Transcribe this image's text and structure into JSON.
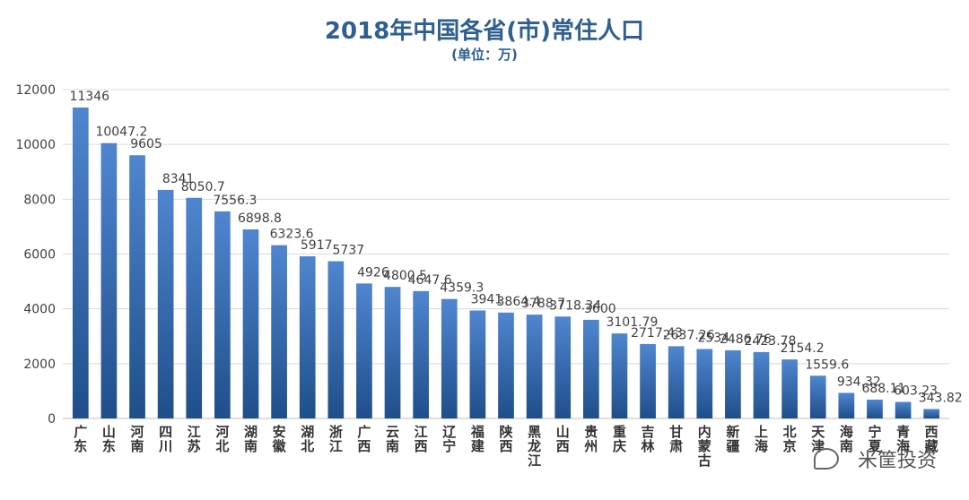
{
  "header": {
    "title": "2018年中国各省(市)常住人口",
    "subtitle": "(单位：万)"
  },
  "watermark": {
    "brand": "米筐投资",
    "icon": "wechat-icon"
  },
  "colors": {
    "bar_top": "#4f86cf",
    "bar_bottom": "#1f4e8a",
    "title": "#2e5f8f",
    "grid": "#d9d9d9",
    "text": "#404040"
  },
  "chart_data": {
    "type": "bar",
    "title": "2018年中国各省(市)常住人口",
    "subtitle": "(单位：万)",
    "categories": [
      "广东",
      "山东",
      "河南",
      "四川",
      "江苏",
      "河北",
      "湖南",
      "安徽",
      "湖北",
      "浙江",
      "广西",
      "云南",
      "江西",
      "辽宁",
      "福建",
      "陕西",
      "黑龙江",
      "山西",
      "贵州",
      "重庆",
      "吉林",
      "甘肃",
      "内蒙古",
      "新疆",
      "上海",
      "北京",
      "天津",
      "海南",
      "宁夏",
      "青海",
      "西藏"
    ],
    "values": [
      11346,
      10047.2,
      9605,
      8341,
      8050.7,
      7556.3,
      6898.8,
      6323.6,
      5917,
      5737,
      4926,
      4800.5,
      4647.6,
      4359.3,
      3941,
      3864.4,
      3788.7,
      3718.34,
      3600,
      3101.79,
      2717.43,
      2637.26,
      2534,
      2486.76,
      2423.78,
      2154.2,
      1559.6,
      934.32,
      688.11,
      603.23,
      343.82
    ],
    "value_labels": [
      "11346",
      "10047.2",
      "9605",
      "8341",
      "8050.7",
      "7556.3",
      "6898.8",
      "6323.6",
      "5917",
      "5737",
      "4926",
      "4800.5",
      "4647.6",
      "4359.3",
      "3941",
      "3864.4",
      "3788.7",
      "3718.34",
      "3600",
      "3101.79",
      "2717.43",
      "2637.26",
      "2534",
      "2486.76",
      "2423.78",
      "2154.2",
      "1559.6",
      "934.32",
      "688.11",
      "603.23",
      "343.82"
    ],
    "yticks": [
      "0",
      "2000",
      "4000",
      "6000",
      "8000",
      "10000",
      "12000"
    ],
    "ylim": [
      0,
      12000
    ],
    "grid": true,
    "legend": "none"
  }
}
